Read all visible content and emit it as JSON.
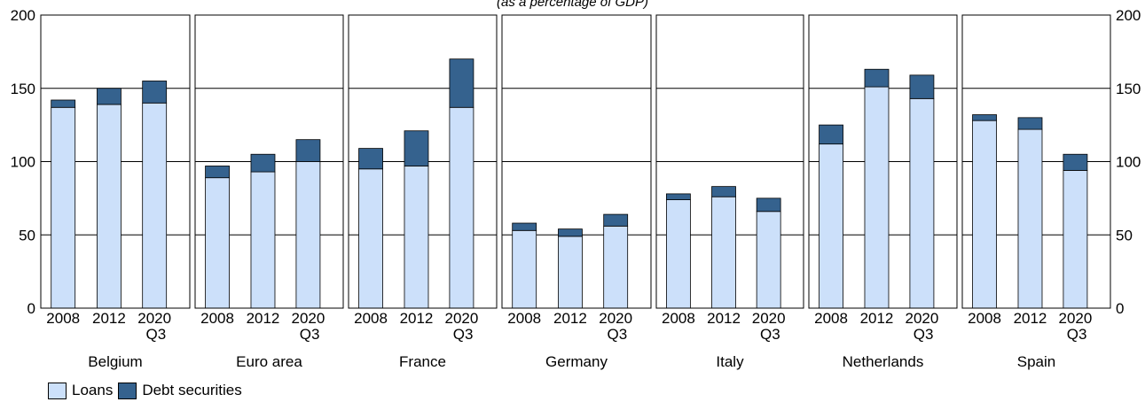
{
  "subtitle": "(as a percentage of GDP)",
  "colors": {
    "loans": "#cce0fa",
    "debt": "#35628e",
    "frame": "#000000"
  },
  "legend": [
    {
      "key": "loans",
      "label": "Loans"
    },
    {
      "key": "debt",
      "label": "Debt securities"
    }
  ],
  "chart_data": {
    "type": "bar",
    "stacked": true,
    "ylim": [
      0,
      200
    ],
    "yticks": [
      0,
      50,
      100,
      150,
      200
    ],
    "grid": true,
    "legend_position": "bottom-left",
    "periods": [
      [
        "2008"
      ],
      [
        "2012"
      ],
      [
        "2020",
        "Q3"
      ]
    ],
    "series": [
      {
        "name": "Loans"
      },
      {
        "name": "Debt securities"
      }
    ],
    "panels": [
      {
        "country": "Belgium",
        "loans": [
          137,
          139,
          140
        ],
        "debt": [
          5,
          11,
          15
        ]
      },
      {
        "country": "Euro area",
        "loans": [
          89,
          93,
          100
        ],
        "debt": [
          8,
          12,
          15
        ]
      },
      {
        "country": "France",
        "loans": [
          95,
          97,
          137
        ],
        "debt": [
          14,
          24,
          33
        ]
      },
      {
        "country": "Germany",
        "loans": [
          53,
          49,
          56
        ],
        "debt": [
          5,
          5,
          8
        ]
      },
      {
        "country": "Italy",
        "loans": [
          74,
          76,
          66
        ],
        "debt": [
          4,
          7,
          9
        ]
      },
      {
        "country": "Netherlands",
        "loans": [
          112,
          151,
          143
        ],
        "debt": [
          13,
          12,
          16
        ]
      },
      {
        "country": "Spain",
        "loans": [
          128,
          122,
          94
        ],
        "debt": [
          4,
          8,
          11
        ]
      }
    ]
  }
}
